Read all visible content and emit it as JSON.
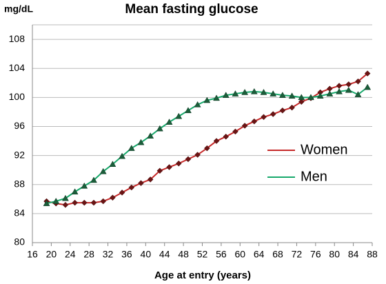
{
  "chart_data": {
    "type": "line",
    "title": "Mean fasting glucose",
    "y_label": "mg/dL",
    "x_label": "Age at entry (years)",
    "x": [
      19,
      21,
      23,
      25,
      27,
      29,
      31,
      33,
      35,
      37,
      39,
      41,
      43,
      45,
      47,
      49,
      51,
      53,
      55,
      57,
      59,
      61,
      63,
      65,
      67,
      69,
      71,
      73,
      75,
      77,
      79,
      81,
      83,
      85,
      87
    ],
    "series": [
      {
        "name": "Women",
        "color": "#c62828",
        "marker": "diamond",
        "values": [
          85.7,
          85.4,
          85.2,
          85.5,
          85.5,
          85.5,
          85.7,
          86.2,
          86.9,
          87.6,
          88.2,
          88.7,
          89.9,
          90.4,
          90.9,
          91.5,
          92.1,
          93.0,
          94.0,
          94.6,
          95.3,
          96.1,
          96.7,
          97.3,
          97.7,
          98.2,
          98.6,
          99.4,
          99.9,
          100.7,
          101.2,
          101.6,
          101.8,
          102.2,
          103.3
        ]
      },
      {
        "name": "Men",
        "color": "#16a86a",
        "marker": "triangle",
        "values": [
          85.4,
          85.7,
          86.1,
          87.0,
          87.8,
          88.6,
          89.8,
          90.8,
          91.9,
          93.0,
          93.8,
          94.7,
          95.7,
          96.6,
          97.4,
          98.2,
          99.0,
          99.6,
          99.9,
          100.3,
          100.5,
          100.7,
          100.8,
          100.7,
          100.5,
          100.3,
          100.2,
          100.0,
          100.0,
          100.2,
          100.5,
          100.8,
          101.0,
          100.4,
          101.4
        ]
      }
    ],
    "xlim": [
      16,
      88
    ],
    "xticks": [
      16,
      20,
      24,
      28,
      32,
      36,
      40,
      44,
      48,
      52,
      56,
      60,
      64,
      68,
      72,
      76,
      80,
      84,
      88
    ],
    "ylim": [
      80,
      110
    ],
    "yticks": [
      80,
      84,
      88,
      92,
      96,
      100,
      104,
      108
    ],
    "grid": true,
    "legend": "right"
  }
}
